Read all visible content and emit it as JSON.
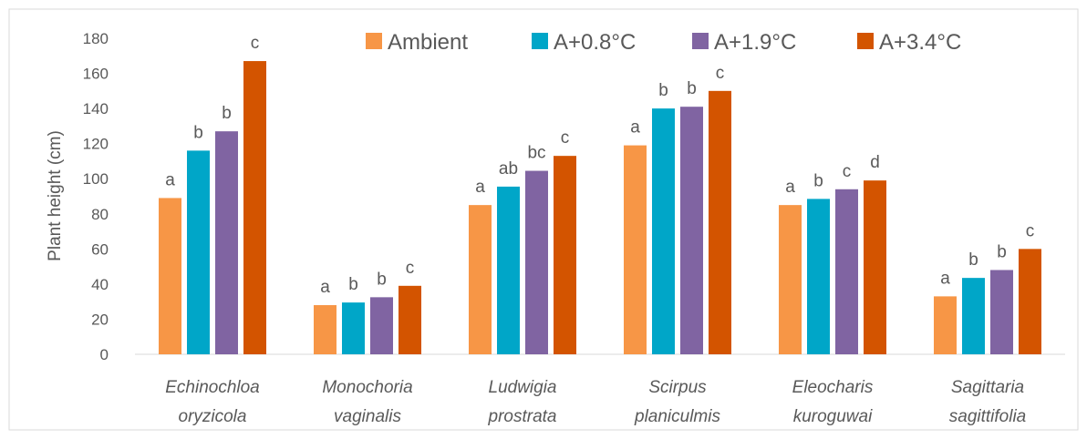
{
  "chart_data": {
    "type": "bar",
    "ylabel": "Plant height (cm)",
    "xlabel": "",
    "ylim": [
      0,
      180
    ],
    "yticks": [
      0,
      20,
      40,
      60,
      80,
      100,
      120,
      140,
      160,
      180
    ],
    "grid": false,
    "legend_position": "top",
    "categories": [
      [
        "Echinochloa",
        "oryzicola"
      ],
      [
        "Monochoria",
        "vaginalis"
      ],
      [
        "Ludwigia",
        "prostrata"
      ],
      [
        "Scirpus",
        "planiculmis"
      ],
      [
        "Eleocharis",
        "kuroguwai"
      ],
      [
        "Sagittaria",
        "sagittifolia"
      ]
    ],
    "series": [
      {
        "name": "Ambient",
        "color": "#F79646",
        "values": [
          89,
          28,
          85,
          119,
          85,
          33
        ],
        "labels": [
          "a",
          "a",
          "a",
          "a",
          "a",
          "a"
        ]
      },
      {
        "name": "A+0.8°C",
        "color": "#00A6C8",
        "values": [
          116,
          29.5,
          95.5,
          140,
          88.5,
          43.5
        ],
        "labels": [
          "b",
          "b",
          "ab",
          "b",
          "b",
          "b"
        ]
      },
      {
        "name": "A+1.9°C",
        "color": "#8064A2",
        "values": [
          127,
          32.5,
          104.5,
          141,
          94,
          48
        ],
        "labels": [
          "b",
          "b",
          "bc",
          "b",
          "c",
          "b"
        ]
      },
      {
        "name": "A+3.4°C",
        "color": "#D35400",
        "values": [
          167,
          39,
          113,
          150,
          99,
          60
        ],
        "labels": [
          "c",
          "c",
          "c",
          "c",
          "d",
          "c"
        ]
      }
    ]
  }
}
